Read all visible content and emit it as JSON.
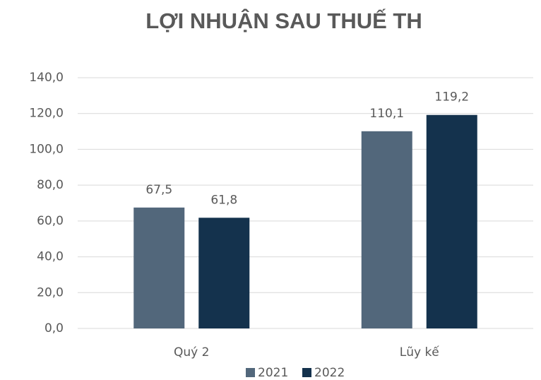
{
  "chart_data": {
    "type": "bar",
    "title": "LỢI NHUẬN SAU THUẾ TH",
    "categories": [
      "Quý 2",
      "Lũy kế"
    ],
    "series": [
      {
        "name": "2021",
        "color": "#52677b",
        "values": [
          67.5,
          110.1
        ],
        "value_labels": [
          "67,5",
          "110,1"
        ]
      },
      {
        "name": "2022",
        "color": "#14324d",
        "values": [
          61.8,
          119.2
        ],
        "value_labels": [
          "61,8",
          "119,2"
        ]
      }
    ],
    "ylim": [
      0,
      140
    ],
    "yticks": [
      {
        "value": 0,
        "label": "0,0"
      },
      {
        "value": 20,
        "label": "20,0"
      },
      {
        "value": 40,
        "label": "40,0"
      },
      {
        "value": 60,
        "label": "60,0"
      },
      {
        "value": 80,
        "label": "80,0"
      },
      {
        "value": 100,
        "label": "100,0"
      },
      {
        "value": 120,
        "label": "120,0"
      },
      {
        "value": 140,
        "label": "140,0"
      }
    ],
    "grid": true,
    "legend": "bottom"
  }
}
